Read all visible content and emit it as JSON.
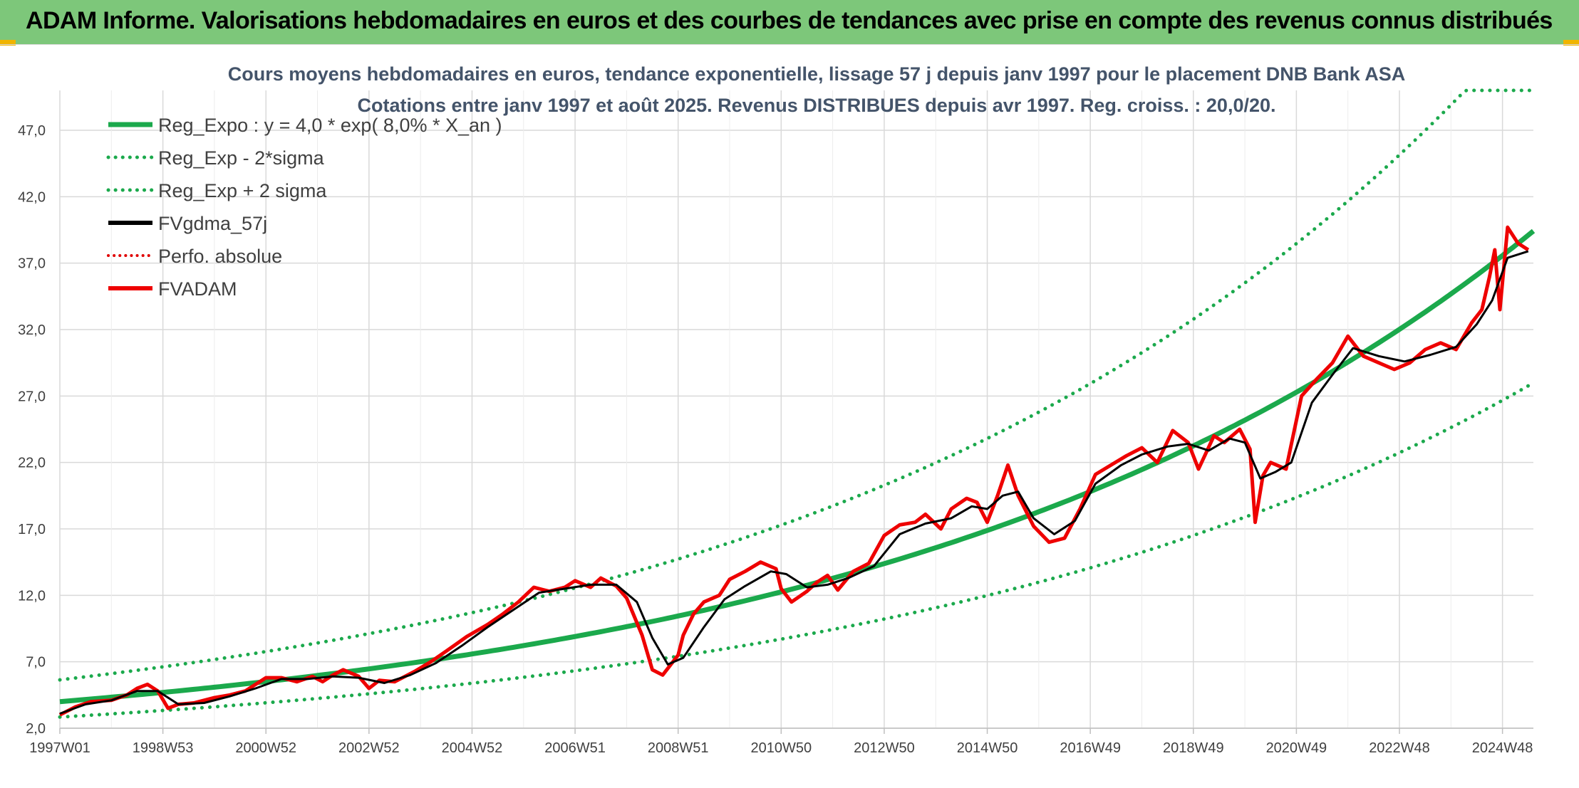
{
  "header": {
    "banner_title": "ADAM Informe. Valorisations hebdomadaires en euros et des courbes de tendances avec prise en compte des revenus connus distribués"
  },
  "colors": {
    "banner": "#7dc77a",
    "reg_expo": "#1ba94c",
    "sigma": "#1ba94c",
    "fvgdma": "#000000",
    "perfo": "#e00000",
    "fvadam": "#ee0000",
    "title": "#44546a"
  },
  "chart_data": {
    "type": "line",
    "title_lines": [
      "Cours moyens hebdomadaires en euros, tendance exponentielle, lissage 57 j depuis janv 1997 pour le placement DNB Bank ASA",
      "Cotations entre janv 1997 et août 2025. Revenus DISTRIBUES depuis avr 1997. Reg. croiss. : 20,0/20."
    ],
    "y_ticks": [
      "2,0",
      "7,0",
      "12,0",
      "17,0",
      "22,0",
      "27,0",
      "32,0",
      "37,0",
      "42,0",
      "47,0"
    ],
    "ylim": [
      2,
      50
    ],
    "x_ticks": [
      "1997W01",
      "1998W53",
      "2000W52",
      "2002W52",
      "2004W52",
      "2006W51",
      "2008W51",
      "2010W50",
      "2012W50",
      "2014W50",
      "2016W49",
      "2018W49",
      "2020W49",
      "2022W48",
      "2024W48"
    ],
    "xlim": [
      1997.0,
      2025.6
    ],
    "grid": true,
    "legend_position": "top-left",
    "legend": [
      {
        "label": "Reg_Expo : y = 4,0 * exp( 8,0% *  X_an )",
        "style": "solid-green"
      },
      {
        "label": "Reg_Exp - 2*sigma",
        "style": "dotted-green"
      },
      {
        "label": "Reg_Exp + 2 sigma",
        "style": "dotted-green"
      },
      {
        "label": "FVgdma_57j",
        "style": "solid-black"
      },
      {
        "label": "Perfo. absolue",
        "style": "dotted-red"
      },
      {
        "label": "FVADAM",
        "style": "solid-red"
      }
    ],
    "trend": {
      "a": 4.0,
      "rate": 0.08,
      "upper_factor": 1.41,
      "lower_factor": 0.71,
      "upper_cap": 50.0
    },
    "fvadam_series": {
      "x": [
        1997.0,
        1997.3,
        1997.6,
        1998.0,
        1998.3,
        1998.5,
        1998.7,
        1998.9,
        1999.1,
        1999.3,
        1999.6,
        2000.0,
        2000.3,
        2000.6,
        2001.0,
        2001.3,
        2001.6,
        2001.9,
        2002.1,
        2002.3,
        2002.5,
        2002.8,
        2003.0,
        2003.2,
        2003.5,
        2003.9,
        2004.2,
        2004.5,
        2004.9,
        2005.3,
        2005.6,
        2005.9,
        2006.2,
        2006.5,
        2006.8,
        2007.0,
        2007.3,
        2007.5,
        2007.8,
        2008.0,
        2008.3,
        2008.5,
        2008.7,
        2009.0,
        2009.1,
        2009.3,
        2009.5,
        2009.8,
        2010.0,
        2010.3,
        2010.6,
        2010.9,
        2011.0,
        2011.2,
        2011.5,
        2011.7,
        2011.9,
        2012.1,
        2012.4,
        2012.7,
        2013.0,
        2013.3,
        2013.6,
        2013.8,
        2014.1,
        2014.3,
        2014.6,
        2014.8,
        2015.0,
        2015.2,
        2015.4,
        2015.6,
        2015.9,
        2016.2,
        2016.5,
        2016.8,
        2017.1,
        2017.4,
        2017.7,
        2018.0,
        2018.3,
        2018.6,
        2018.9,
        2019.1,
        2019.4,
        2019.6,
        2019.9,
        2020.1,
        2020.2,
        2020.35,
        2020.5,
        2020.8,
        2021.1,
        2021.4,
        2021.7,
        2022.0,
        2022.3,
        2022.6,
        2022.9,
        2023.2,
        2023.5,
        2023.8,
        2024.1,
        2024.4,
        2024.6,
        2024.75,
        2024.85,
        2024.95,
        2025.1,
        2025.3,
        2025.5
      ],
      "y": [
        3.0,
        3.6,
        4.0,
        4.1,
        4.5,
        5.0,
        5.3,
        4.8,
        3.5,
        3.8,
        3.9,
        4.3,
        4.5,
        4.8,
        5.8,
        5.8,
        5.5,
        5.9,
        5.5,
        6.0,
        6.4,
        5.9,
        5.0,
        5.6,
        5.5,
        6.3,
        7.0,
        7.8,
        8.9,
        9.8,
        10.6,
        11.5,
        12.6,
        12.3,
        12.6,
        13.1,
        12.6,
        13.3,
        12.7,
        11.8,
        9.0,
        6.4,
        6.0,
        7.5,
        9.0,
        10.6,
        11.5,
        12.0,
        13.2,
        13.8,
        14.5,
        14.0,
        12.5,
        11.5,
        12.3,
        13.0,
        13.5,
        12.4,
        13.8,
        14.4,
        16.5,
        17.3,
        17.5,
        18.1,
        17.0,
        18.5,
        19.3,
        19.0,
        17.5,
        19.5,
        21.8,
        19.5,
        17.2,
        16.0,
        16.3,
        18.5,
        21.1,
        21.8,
        22.5,
        23.1,
        22.0,
        24.4,
        23.5,
        21.5,
        24.0,
        23.5,
        24.5,
        23.0,
        17.5,
        21.0,
        22.0,
        21.5,
        27.0,
        28.3,
        29.5,
        31.5,
        30.0,
        29.5,
        29.0,
        29.5,
        30.5,
        31.0,
        30.5,
        32.5,
        33.5,
        36.0,
        38.0,
        33.5,
        39.7,
        38.5,
        38.0
      ]
    },
    "fvgdma_series": {
      "x": [
        1997.0,
        1997.5,
        1998.0,
        1998.5,
        1998.9,
        1999.3,
        1999.8,
        2000.3,
        2000.8,
        2001.3,
        2001.8,
        2002.3,
        2002.8,
        2003.3,
        2003.8,
        2004.3,
        2004.8,
        2005.3,
        2005.8,
        2006.3,
        2006.8,
        2007.3,
        2007.8,
        2008.2,
        2008.5,
        2008.8,
        2009.1,
        2009.5,
        2009.9,
        2010.3,
        2010.8,
        2011.1,
        2011.5,
        2011.9,
        2012.3,
        2012.8,
        2013.3,
        2013.8,
        2014.3,
        2014.7,
        2015.0,
        2015.3,
        2015.6,
        2015.9,
        2016.3,
        2016.7,
        2017.1,
        2017.6,
        2018.0,
        2018.5,
        2018.9,
        2019.3,
        2019.7,
        2020.0,
        2020.3,
        2020.6,
        2020.9,
        2021.3,
        2021.7,
        2022.1,
        2022.6,
        2023.1,
        2023.6,
        2024.1,
        2024.5,
        2024.8,
        2025.1,
        2025.5
      ],
      "y": [
        3.1,
        3.8,
        4.1,
        4.8,
        4.8,
        3.8,
        3.9,
        4.4,
        5.0,
        5.7,
        5.7,
        5.9,
        5.8,
        5.4,
        6.0,
        6.9,
        8.2,
        9.6,
        10.9,
        12.2,
        12.5,
        12.8,
        12.8,
        11.5,
        8.8,
        6.8,
        7.3,
        9.6,
        11.7,
        12.7,
        13.8,
        13.6,
        12.6,
        12.8,
        13.3,
        14.2,
        16.6,
        17.4,
        17.8,
        18.7,
        18.5,
        19.5,
        19.8,
        17.8,
        16.6,
        17.6,
        20.4,
        21.8,
        22.6,
        23.2,
        23.4,
        22.9,
        23.8,
        23.5,
        20.8,
        21.3,
        22.0,
        26.5,
        28.6,
        30.6,
        30.0,
        29.6,
        30.1,
        30.7,
        32.4,
        34.2,
        37.4,
        37.9
      ]
    }
  }
}
